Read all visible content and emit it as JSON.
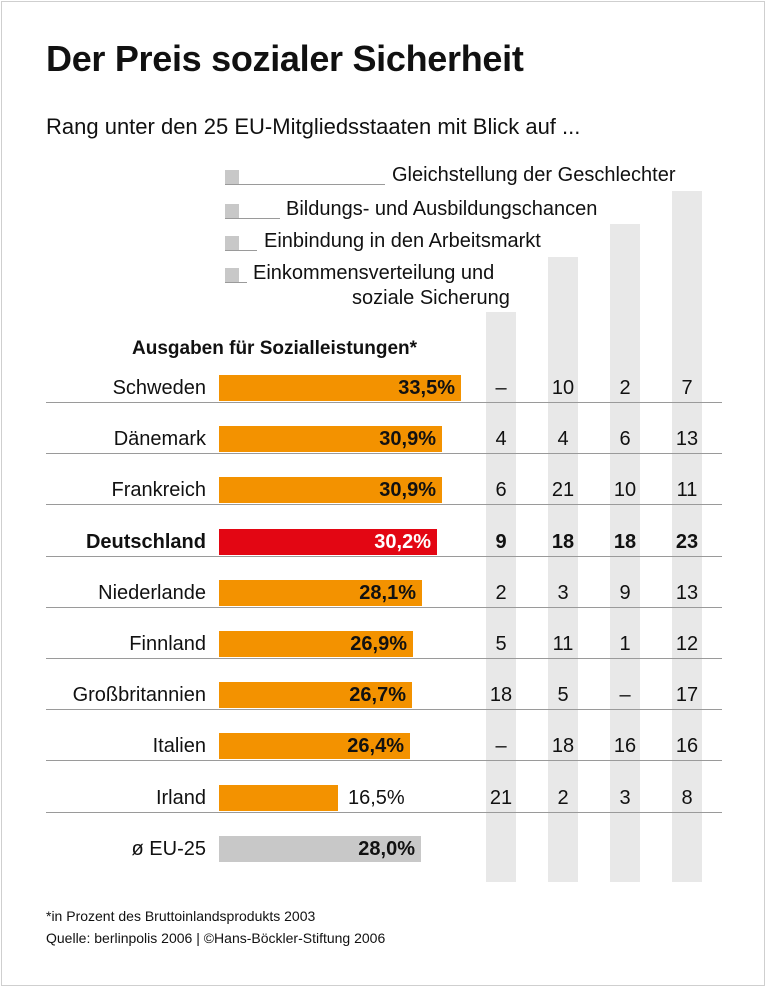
{
  "title": "Der Preis sozialer Sicherheit",
  "subtitle": "Rang unter den 25 EU-Mitgliedsstaaten mit Blick auf ...",
  "legend": [
    {
      "label": "Gleichstellung der Geschlechter"
    },
    {
      "label": "Bildungs- und Ausbildungschancen"
    },
    {
      "label": "Einbindung in den Arbeitsmarkt"
    },
    {
      "label": "Einkommensverteilung und",
      "label2": "soziale Sicherung"
    }
  ],
  "chart_data": {
    "type": "bar",
    "title": "Der Preis sozialer Sicherheit",
    "xlabel": "Ausgaben für Sozialleistungen*",
    "unit": "%",
    "categories": [
      "Schweden",
      "Dänemark",
      "Frankreich",
      "Deutschland",
      "Niederlande",
      "Finnland",
      "Großbritannien",
      "Italien",
      "Irland",
      "ø EU-25"
    ],
    "values": [
      33.5,
      30.9,
      30.9,
      30.2,
      28.1,
      26.9,
      26.7,
      26.4,
      16.5,
      28.0
    ],
    "value_labels": [
      "33,5%",
      "30,9%",
      "30,9%",
      "30,2%",
      "28,1%",
      "26,9%",
      "26,7%",
      "26,4%",
      "16,5%",
      "28,0%"
    ],
    "highlight": "Deutschland",
    "colors": {
      "default": "#f39200",
      "highlight": "#e30613",
      "average": "#c8c8c8"
    },
    "xlim": [
      0,
      33.5
    ],
    "rank_columns": [
      "Gleichstellung der Geschlechter",
      "Bildungs- und Ausbildungschancen",
      "Einbindung in den Arbeitsmarkt",
      "Einkommensverteilung und soziale Sicherung"
    ],
    "ranks": [
      [
        "–",
        "10",
        "2",
        "7"
      ],
      [
        "4",
        "4",
        "6",
        "13"
      ],
      [
        "6",
        "21",
        "10",
        "11"
      ],
      [
        "9",
        "18",
        "18",
        "23"
      ],
      [
        "2",
        "3",
        "9",
        "13"
      ],
      [
        "5",
        "11",
        "1",
        "12"
      ],
      [
        "18",
        "5",
        "–",
        "17"
      ],
      [
        "–",
        "18",
        "16",
        "16"
      ],
      [
        "21",
        "2",
        "3",
        "8"
      ],
      null
    ]
  },
  "footnotes": {
    "note": "*in Prozent des Bruttoinlandsprodukts 2003",
    "source": "Quelle: berlinpolis 2006 | ©Hans-Böckler-Stiftung 2006"
  }
}
